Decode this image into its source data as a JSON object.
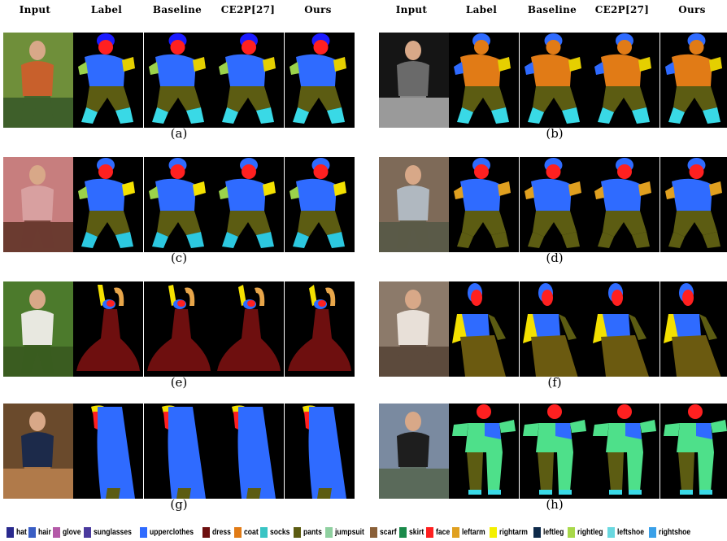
{
  "columns_left": [
    "Input",
    "Label",
    "Baseline",
    "CE2P[27]",
    "Ours"
  ],
  "columns_right": [
    "Input",
    "Label",
    "Baseline",
    "CE2P[27]",
    "Ours"
  ],
  "panels": [
    {
      "caption": "(a)",
      "photo": [
        "#6f8f3a",
        "#c8602c",
        "#3e5f2a"
      ],
      "body": "#2f6bff",
      "legs": "#5c5c12",
      "arms": "#e5cf00",
      "head": "#ff2020",
      "hair": "#1a1aff",
      "shoes": "#39d9e6",
      "extra": "#9bd24a",
      "pose": "run"
    },
    {
      "caption": "(b)",
      "photo": [
        "#151515",
        "#6a6a6a",
        "#9a9a9a"
      ],
      "body": "#e17b16",
      "legs": "#5c5c12",
      "arms": "#e5cf00",
      "head": "#e17b16",
      "hair": "#2f6bff",
      "shoes": "#39d9e6",
      "extra": "#2f6bff",
      "pose": "kick"
    },
    {
      "caption": "(c)",
      "photo": [
        "#c77e7e",
        "#d8a0a0",
        "#6b3b30"
      ],
      "body": "#2f6bff",
      "legs": "#5c5c12",
      "arms": "#f4e100",
      "head": "#ff2020",
      "hair": "#2f6bff",
      "shoes": "#2cc8e0",
      "extra": "#9bd24a",
      "pose": "crouch"
    },
    {
      "caption": "(d)",
      "photo": [
        "#7e6a58",
        "#b0b8c0",
        "#5a5a48"
      ],
      "body": "#2f6bff",
      "legs": "#5c5c12",
      "arms": "#e0a020",
      "head": "#ff2020",
      "hair": "#2f6bff",
      "shoes": "#5c5c12",
      "extra": "#e0a020",
      "pose": "stand"
    },
    {
      "caption": "(e)",
      "photo": [
        "#4c7a2c",
        "#e8e8e0",
        "#3a5c20"
      ],
      "body": "#6e0f0f",
      "legs": "#6e0f0f",
      "arms": "#e8a64a",
      "head": "#ff2020",
      "hair": "#2f6bff",
      "shoes": "#6e0f0f",
      "extra": "#f4e100",
      "pose": "dress"
    },
    {
      "caption": "(f)",
      "photo": [
        "#8c7a6a",
        "#e8e0d8",
        "#5c4a3c"
      ],
      "body": "#2f6bff",
      "legs": "#6b5a10",
      "arms": "#f4e100",
      "head": "#ff2020",
      "hair": "#2f6bff",
      "shoes": "#6b5a10",
      "extra": "#5c5c12",
      "pose": "sit"
    },
    {
      "caption": "(g)",
      "photo": [
        "#6a4a2c",
        "#1c2a4a",
        "#b07a4a"
      ],
      "body": "#2f6bff",
      "legs": "#5c5c12",
      "arms": "#f4e100",
      "head": "#ff2020",
      "hair": "#2f6bff",
      "shoes": "#5c5c12",
      "extra": "#e0a020",
      "pose": "lean"
    },
    {
      "caption": "(h)",
      "photo": [
        "#7a8aa0",
        "#1e1e1e",
        "#5a6a5a"
      ],
      "body": "#4ee08a",
      "legs": "#5c5c12",
      "arms": "#4ee08a",
      "head": "#ff2020",
      "hair": "#ff2020",
      "shoes": "#39d9e6",
      "extra": "#2f6bff",
      "pose": "wet"
    }
  ],
  "legend": [
    {
      "label": "hat",
      "color": "#2a2a8e"
    },
    {
      "label": "hair",
      "color": "#3a5ec4"
    },
    {
      "label": "glove",
      "color": "#b45aa8"
    },
    {
      "label": "sunglasses",
      "color": "#4a3a9e"
    },
    {
      "label": "upperclothes",
      "color": "#2f6bff"
    },
    {
      "label": "dress",
      "color": "#6e0f0f"
    },
    {
      "label": "coat",
      "color": "#e17b16"
    },
    {
      "label": "socks",
      "color": "#39c4c4"
    },
    {
      "label": "pants",
      "color": "#5c5c12"
    },
    {
      "label": "jumpsuit",
      "color": "#8fd0a0"
    },
    {
      "label": "scarf",
      "color": "#8a6038"
    },
    {
      "label": "skirt",
      "color": "#1a8a4a"
    },
    {
      "label": "face",
      "color": "#ff2020"
    },
    {
      "label": "leftarm",
      "color": "#e0a020"
    },
    {
      "label": "rightarm",
      "color": "#f4f000"
    },
    {
      "label": "leftleg",
      "color": "#0e2a4a"
    },
    {
      "label": "rightleg",
      "color": "#a8d84a"
    },
    {
      "label": "leftshoe",
      "color": "#6ad8e0"
    },
    {
      "label": "rightshoe",
      "color": "#3aa0e8"
    }
  ]
}
